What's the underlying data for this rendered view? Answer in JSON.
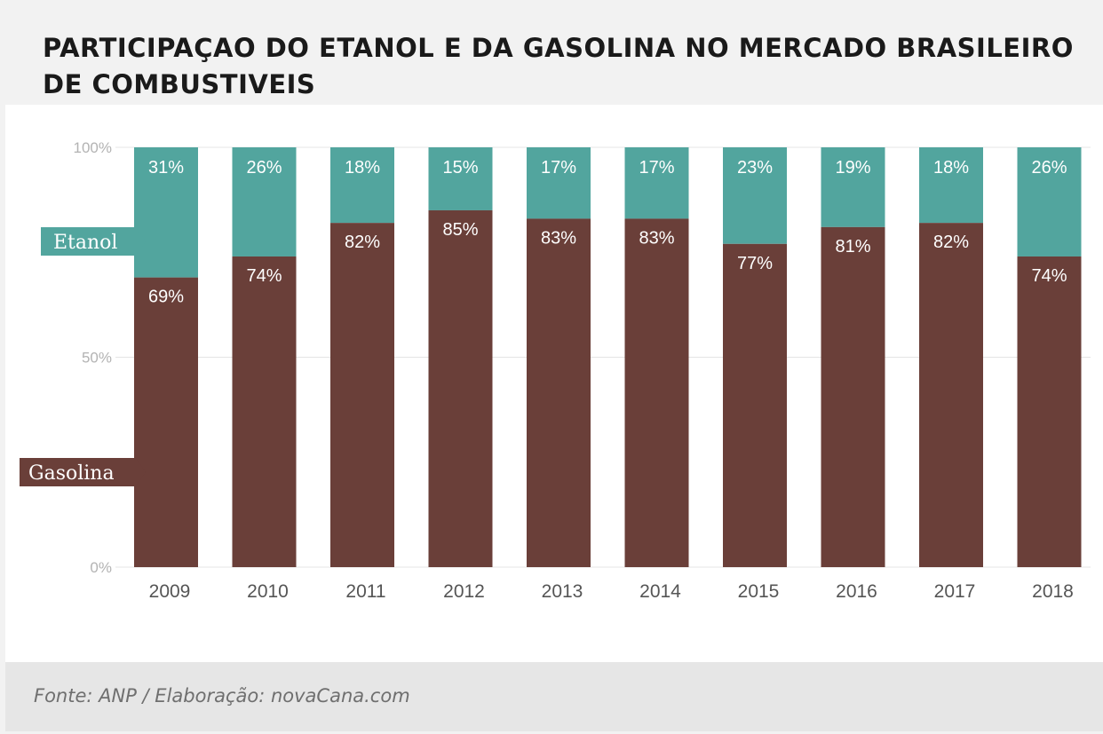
{
  "title": "PARTICIPAÇAO DO ETANOL E DA GASOLINA NO MERCADO BRASILEIRO DE COMBUSTIVEIS",
  "source": "Fonte: ANP / Elaboração: novaCana.com",
  "colors": {
    "etanol": "#52a59e",
    "gasolina": "#6a3f39",
    "grid": "#e4e4e4"
  },
  "chart_data": {
    "type": "bar",
    "stacked": true,
    "categories": [
      "2009",
      "2010",
      "2011",
      "2012",
      "2013",
      "2014",
      "2015",
      "2016",
      "2017",
      "2018"
    ],
    "series": [
      {
        "name": "Gasolina",
        "values": [
          69,
          74,
          82,
          85,
          83,
          83,
          77,
          81,
          82,
          74
        ],
        "labels": [
          "69%",
          "74%",
          "82%",
          "85%",
          "83%",
          "83%",
          "77%",
          "81%",
          "82%",
          "74%"
        ]
      },
      {
        "name": "Etanol",
        "values": [
          31,
          26,
          18,
          15,
          17,
          17,
          23,
          19,
          18,
          26
        ],
        "labels": [
          "31%",
          "26%",
          "18%",
          "15%",
          "17%",
          "17%",
          "23%",
          "19%",
          "18%",
          "26%"
        ]
      }
    ],
    "yticks": [
      {
        "value": 0,
        "label": "0%"
      },
      {
        "value": 50,
        "label": "50%"
      },
      {
        "value": 100,
        "label": "100%"
      }
    ],
    "ylim": [
      0,
      100
    ],
    "legend": {
      "etanol_label": "Etanol",
      "gasolina_label": "Gasolina"
    },
    "title": "PARTICIPAÇAO DO ETANOL E DA GASOLINA NO MERCADO BRASILEIRO DE COMBUSTIVEIS"
  }
}
